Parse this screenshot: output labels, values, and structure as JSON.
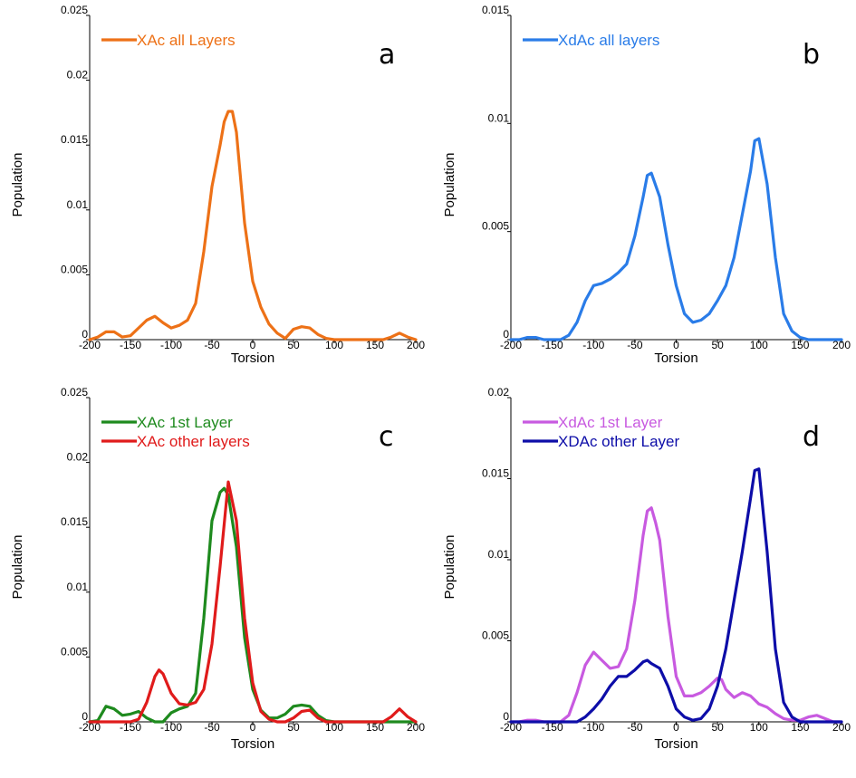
{
  "chart_data": [
    {
      "type": "line",
      "panel_label": "a",
      "xlabel": "Torsion",
      "ylabel": "Population",
      "xlim": [
        -200,
        200
      ],
      "ylim": [
        0,
        0.025
      ],
      "xticks": [
        "-200",
        "-150",
        "-100",
        "-50",
        "0",
        "50",
        "100",
        "150",
        "200"
      ],
      "yticks": [
        "0",
        "0.005",
        "0.01",
        "0.015",
        "0.02",
        "0.025"
      ],
      "legend_position": "top-left",
      "series": [
        {
          "name": "XAc all Layers",
          "color": "#ED7117",
          "x": [
            -200,
            -190,
            -180,
            -170,
            -160,
            -150,
            -140,
            -130,
            -120,
            -110,
            -100,
            -90,
            -80,
            -70,
            -60,
            -50,
            -40,
            -35,
            -30,
            -25,
            -20,
            -10,
            0,
            10,
            20,
            30,
            40,
            50,
            60,
            70,
            80,
            90,
            100,
            110,
            120,
            130,
            140,
            150,
            160,
            170,
            180,
            190,
            200
          ],
          "y": [
            0,
            0.0002,
            0.0006,
            0.0006,
            0.0002,
            0.0003,
            0.0009,
            0.0015,
            0.0018,
            0.0013,
            0.0009,
            0.0011,
            0.0015,
            0.0028,
            0.0068,
            0.0118,
            0.015,
            0.0168,
            0.0176,
            0.0176,
            0.016,
            0.009,
            0.0045,
            0.0025,
            0.0012,
            0.0005,
            0.0001,
            0.0008,
            0.001,
            0.0009,
            0.0004,
            0.0001,
            0,
            0,
            0,
            0,
            0,
            0,
            0,
            0.0002,
            0.0005,
            0.0002,
            0
          ]
        }
      ]
    },
    {
      "type": "line",
      "panel_label": "b",
      "xlabel": "Torsion",
      "ylabel": "Population",
      "xlim": [
        -200,
        200
      ],
      "ylim": [
        0,
        0.015
      ],
      "xticks": [
        "-200",
        "-150",
        "-100",
        "-50",
        "0",
        "50",
        "100",
        "150",
        "200"
      ],
      "yticks": [
        "0",
        "0.005",
        "0.01",
        "0.015"
      ],
      "legend_position": "top-left",
      "series": [
        {
          "name": "XdAc all layers",
          "color": "#2A7CE8",
          "x": [
            -200,
            -190,
            -180,
            -170,
            -160,
            -150,
            -140,
            -130,
            -120,
            -110,
            -100,
            -90,
            -80,
            -70,
            -60,
            -50,
            -40,
            -35,
            -30,
            -20,
            -10,
            0,
            10,
            20,
            30,
            40,
            50,
            60,
            70,
            80,
            90,
            95,
            100,
            110,
            120,
            130,
            140,
            150,
            160,
            170,
            180,
            190,
            200
          ],
          "y": [
            0,
            0,
            0.0001,
            0.0001,
            0,
            0,
            0,
            0.0002,
            0.0008,
            0.0018,
            0.0025,
            0.0026,
            0.0028,
            0.0031,
            0.0035,
            0.0048,
            0.0066,
            0.0076,
            0.0077,
            0.0066,
            0.0044,
            0.0025,
            0.0012,
            0.0008,
            0.0009,
            0.0012,
            0.0018,
            0.0025,
            0.0038,
            0.0058,
            0.0078,
            0.0092,
            0.0093,
            0.0072,
            0.0038,
            0.0012,
            0.0004,
            0.0001,
            0,
            0,
            0,
            0,
            0
          ]
        }
      ]
    },
    {
      "type": "line",
      "panel_label": "c",
      "xlabel": "Torsion",
      "ylabel": "Population",
      "xlim": [
        -200,
        200
      ],
      "ylim": [
        0,
        0.025
      ],
      "xticks": [
        "-200",
        "-150",
        "-100",
        "-50",
        "0",
        "50",
        "100",
        "150",
        "200"
      ],
      "yticks": [
        "0",
        "0.005",
        "0.01",
        "0.015",
        "0.02",
        "0.025"
      ],
      "legend_position": "top-left",
      "series": [
        {
          "name": "XAc 1st Layer",
          "color": "#1E8A1E",
          "x": [
            -200,
            -190,
            -180,
            -170,
            -160,
            -150,
            -140,
            -130,
            -120,
            -110,
            -100,
            -90,
            -80,
            -70,
            -60,
            -50,
            -40,
            -35,
            -30,
            -20,
            -10,
            0,
            10,
            20,
            30,
            40,
            50,
            60,
            70,
            80,
            90,
            100,
            110,
            120,
            130,
            140,
            150,
            160,
            170,
            180,
            190,
            200
          ],
          "y": [
            0,
            0.0001,
            0.0012,
            0.001,
            0.0005,
            0.0006,
            0.0008,
            0.0003,
            0,
            0,
            0.0007,
            0.001,
            0.0012,
            0.0022,
            0.008,
            0.0155,
            0.0177,
            0.018,
            0.0175,
            0.0135,
            0.0065,
            0.0025,
            0.0009,
            0.0003,
            0.0003,
            0.0006,
            0.0012,
            0.0013,
            0.0012,
            0.0005,
            0.0001,
            0,
            0,
            0,
            0,
            0,
            0,
            0,
            0,
            0,
            0,
            0
          ]
        },
        {
          "name": "XAc other layers",
          "color": "#E01B1B",
          "x": [
            -200,
            -190,
            -180,
            -170,
            -160,
            -150,
            -140,
            -130,
            -120,
            -115,
            -110,
            -100,
            -90,
            -80,
            -70,
            -60,
            -50,
            -40,
            -30,
            -20,
            -10,
            0,
            10,
            20,
            30,
            40,
            50,
            60,
            70,
            80,
            90,
            100,
            110,
            120,
            130,
            140,
            150,
            160,
            170,
            180,
            190,
            200
          ],
          "y": [
            0,
            0,
            0,
            0,
            0,
            0,
            0.0002,
            0.0015,
            0.0035,
            0.004,
            0.0037,
            0.0022,
            0.0014,
            0.0013,
            0.0015,
            0.0025,
            0.006,
            0.012,
            0.0185,
            0.0155,
            0.008,
            0.003,
            0.0008,
            0.0002,
            0,
            0,
            0.0003,
            0.0008,
            0.0009,
            0.0003,
            0,
            0,
            0,
            0,
            0,
            0,
            0,
            0,
            0.0004,
            0.001,
            0.0004,
            0
          ]
        }
      ]
    },
    {
      "type": "line",
      "panel_label": "d",
      "xlabel": "Torsion",
      "ylabel": "Population",
      "xlim": [
        -200,
        200
      ],
      "ylim": [
        0,
        0.02
      ],
      "xticks": [
        "-200",
        "-150",
        "-100",
        "-50",
        "0",
        "50",
        "100",
        "150",
        "200"
      ],
      "yticks": [
        "0",
        "0.005",
        "0.01",
        "0.015",
        "0.02"
      ],
      "legend_position": "top-left",
      "series": [
        {
          "name": "XdAc 1st Layer",
          "color": "#C85AE0",
          "x": [
            -200,
            -190,
            -180,
            -170,
            -160,
            -150,
            -140,
            -130,
            -120,
            -110,
            -100,
            -90,
            -80,
            -70,
            -60,
            -50,
            -40,
            -35,
            -30,
            -25,
            -20,
            -10,
            0,
            10,
            20,
            30,
            40,
            50,
            55,
            60,
            70,
            80,
            90,
            100,
            110,
            120,
            130,
            140,
            150,
            160,
            170,
            180,
            190,
            200
          ],
          "y": [
            0,
            0,
            0.0001,
            0.0001,
            0,
            0,
            0,
            0.0004,
            0.0018,
            0.0035,
            0.0043,
            0.0038,
            0.0033,
            0.0034,
            0.0045,
            0.0075,
            0.0115,
            0.013,
            0.0132,
            0.0123,
            0.0112,
            0.0065,
            0.0028,
            0.0016,
            0.0016,
            0.0018,
            0.0022,
            0.0027,
            0.0026,
            0.002,
            0.0015,
            0.0018,
            0.0016,
            0.0011,
            0.0009,
            0.0005,
            0.0002,
            0.0001,
            0.0001,
            0.0003,
            0.0004,
            0.0002,
            0,
            0
          ]
        },
        {
          "name": "XDAc other Layer",
          "color": "#0D0DA8",
          "x": [
            -200,
            -190,
            -180,
            -170,
            -160,
            -150,
            -140,
            -130,
            -120,
            -110,
            -100,
            -90,
            -80,
            -70,
            -60,
            -50,
            -40,
            -35,
            -30,
            -20,
            -10,
            0,
            10,
            20,
            30,
            40,
            50,
            60,
            70,
            80,
            90,
            95,
            100,
            110,
            120,
            130,
            140,
            150,
            160,
            170,
            180,
            190,
            200
          ],
          "y": [
            0,
            0,
            0,
            0,
            0,
            0,
            0,
            0,
            0,
            0.0003,
            0.0008,
            0.0014,
            0.0022,
            0.0028,
            0.0028,
            0.0032,
            0.0037,
            0.0038,
            0.0036,
            0.0033,
            0.0022,
            0.0008,
            0.0003,
            0.0001,
            0.0002,
            0.0008,
            0.0022,
            0.0045,
            0.0075,
            0.0105,
            0.0138,
            0.0155,
            0.0156,
            0.0105,
            0.0045,
            0.0012,
            0.0003,
            0,
            0,
            0,
            0,
            0,
            0
          ]
        }
      ]
    }
  ]
}
